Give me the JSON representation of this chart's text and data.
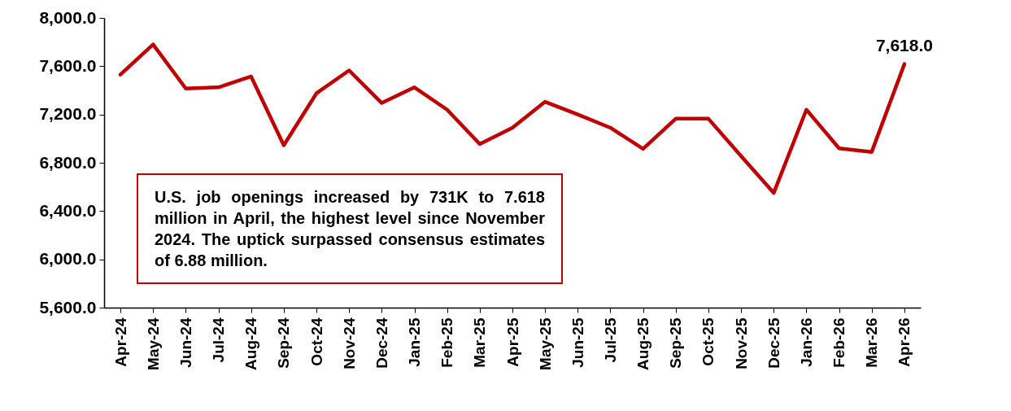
{
  "chart_data": {
    "type": "line",
    "categories": [
      "Apr-24",
      "May-24",
      "Jun-24",
      "Jul-24",
      "Aug-24",
      "Sep-24",
      "Oct-24",
      "Nov-24",
      "Dec-24",
      "Jan-25",
      "Feb-25",
      "Mar-25",
      "Apr-25",
      "May-25",
      "Jun-25",
      "Jul-25",
      "Aug-25",
      "Sep-25",
      "Oct-25",
      "Nov-25",
      "Dec-25",
      "Jan-26",
      "Feb-26",
      "Mar-26",
      "Apr-26"
    ],
    "series": [
      {
        "color": "#c00000",
        "values": [
          7530,
          7780,
          7415,
          7425,
          7515,
          6945,
          7375,
          7565,
          7295,
          7425,
          7240,
          6955,
          7090,
          7305,
          7200,
          7090,
          6915,
          7165,
          7165,
          6855,
          6550,
          7240,
          6920,
          6890,
          7618
        ]
      }
    ],
    "ylim": [
      5600,
      8000
    ],
    "yticks": [
      {
        "value": 5600,
        "label": "5,600.0"
      },
      {
        "value": 6000,
        "label": "6,000.0"
      },
      {
        "value": 6400,
        "label": "6,400.0"
      },
      {
        "value": 6800,
        "label": "6,800.0"
      },
      {
        "value": 7200,
        "label": "7,200.0"
      },
      {
        "value": 7600,
        "label": "7,600.0"
      },
      {
        "value": 8000,
        "label": "8,000.0"
      }
    ],
    "grid": false,
    "marker": "none",
    "line_style": "solid",
    "annotations": [
      {
        "text": "7,618.0",
        "x": "Apr-26",
        "y": 7618
      },
      "U.S. job openings increased by 731K to 7.618 million in April, the highest level since November 2024.  The uptick surpassed consensus estimates of 6.88 million."
    ]
  }
}
